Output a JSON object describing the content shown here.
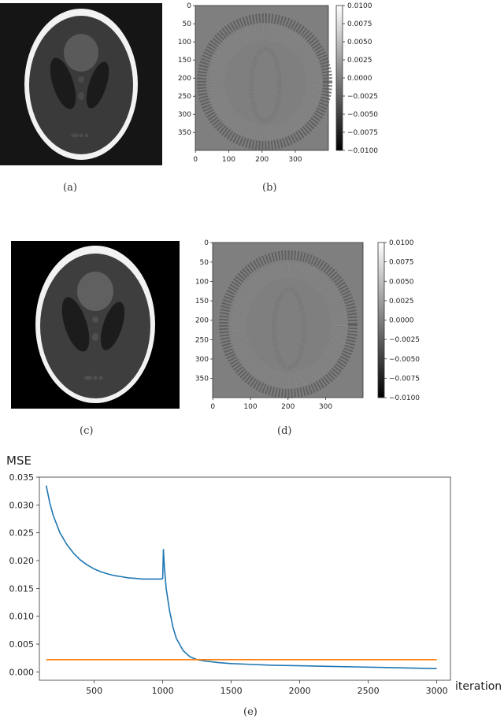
{
  "captions": {
    "a": "(a)",
    "b": "(b)",
    "c": "(c)",
    "d": "(d)",
    "e": "(e)"
  },
  "colorbar": {
    "min": -0.01,
    "max": 0.01,
    "ticks": [
      "0.0100",
      "0.0075",
      "0.0050",
      "0.0025",
      "0.0000",
      "−0.0025",
      "−0.0050",
      "−0.0075",
      "−0.0100"
    ]
  },
  "error_map_axes": {
    "xticks": [
      "0",
      "100",
      "200",
      "300"
    ],
    "yticks": [
      "0",
      "50",
      "100",
      "150",
      "200",
      "250",
      "300",
      "350"
    ]
  },
  "chart_data": {
    "type": "line",
    "title": "",
    "ylabel": "MSE",
    "xlabel": "iteration",
    "xlim": [
      100,
      3100
    ],
    "ylim": [
      -0.0015,
      0.035
    ],
    "xticks": [
      500,
      1000,
      1500,
      2000,
      2500,
      3000
    ],
    "yticks": [
      0.0,
      0.005,
      0.01,
      0.015,
      0.02,
      0.025,
      0.03,
      0.035
    ],
    "ytick_labels": [
      "0.000",
      "0.005",
      "0.010",
      "0.015",
      "0.020",
      "0.025",
      "0.030",
      "0.035"
    ],
    "grid": false,
    "series": [
      {
        "color": "#1f77b4",
        "points": [
          [
            150,
            0.0335
          ],
          [
            175,
            0.0305
          ],
          [
            200,
            0.0282
          ],
          [
            250,
            0.025
          ],
          [
            300,
            0.0229
          ],
          [
            350,
            0.0213
          ],
          [
            400,
            0.0201
          ],
          [
            450,
            0.0192
          ],
          [
            500,
            0.0185
          ],
          [
            550,
            0.018
          ],
          [
            600,
            0.0176
          ],
          [
            650,
            0.0173
          ],
          [
            700,
            0.0171
          ],
          [
            750,
            0.0169
          ],
          [
            800,
            0.0168
          ],
          [
            850,
            0.0167
          ],
          [
            900,
            0.0167
          ],
          [
            950,
            0.0167
          ],
          [
            990,
            0.0167
          ],
          [
            1000,
            0.0168
          ],
          [
            1005,
            0.022
          ],
          [
            1012,
            0.019
          ],
          [
            1025,
            0.015
          ],
          [
            1050,
            0.011
          ],
          [
            1075,
            0.008
          ],
          [
            1100,
            0.006
          ],
          [
            1150,
            0.0038
          ],
          [
            1200,
            0.0027
          ],
          [
            1250,
            0.0022
          ],
          [
            1300,
            0.002
          ],
          [
            1400,
            0.0017
          ],
          [
            1500,
            0.0015
          ],
          [
            1600,
            0.0014
          ],
          [
            1800,
            0.0012
          ],
          [
            2000,
            0.0011
          ],
          [
            2200,
            0.001
          ],
          [
            2400,
            0.0009
          ],
          [
            2600,
            0.0008
          ],
          [
            2800,
            0.0007
          ],
          [
            3000,
            0.0006
          ]
        ]
      },
      {
        "color": "#ff7f0e",
        "points": [
          [
            150,
            0.0022
          ],
          [
            3000,
            0.0022
          ]
        ]
      }
    ]
  }
}
